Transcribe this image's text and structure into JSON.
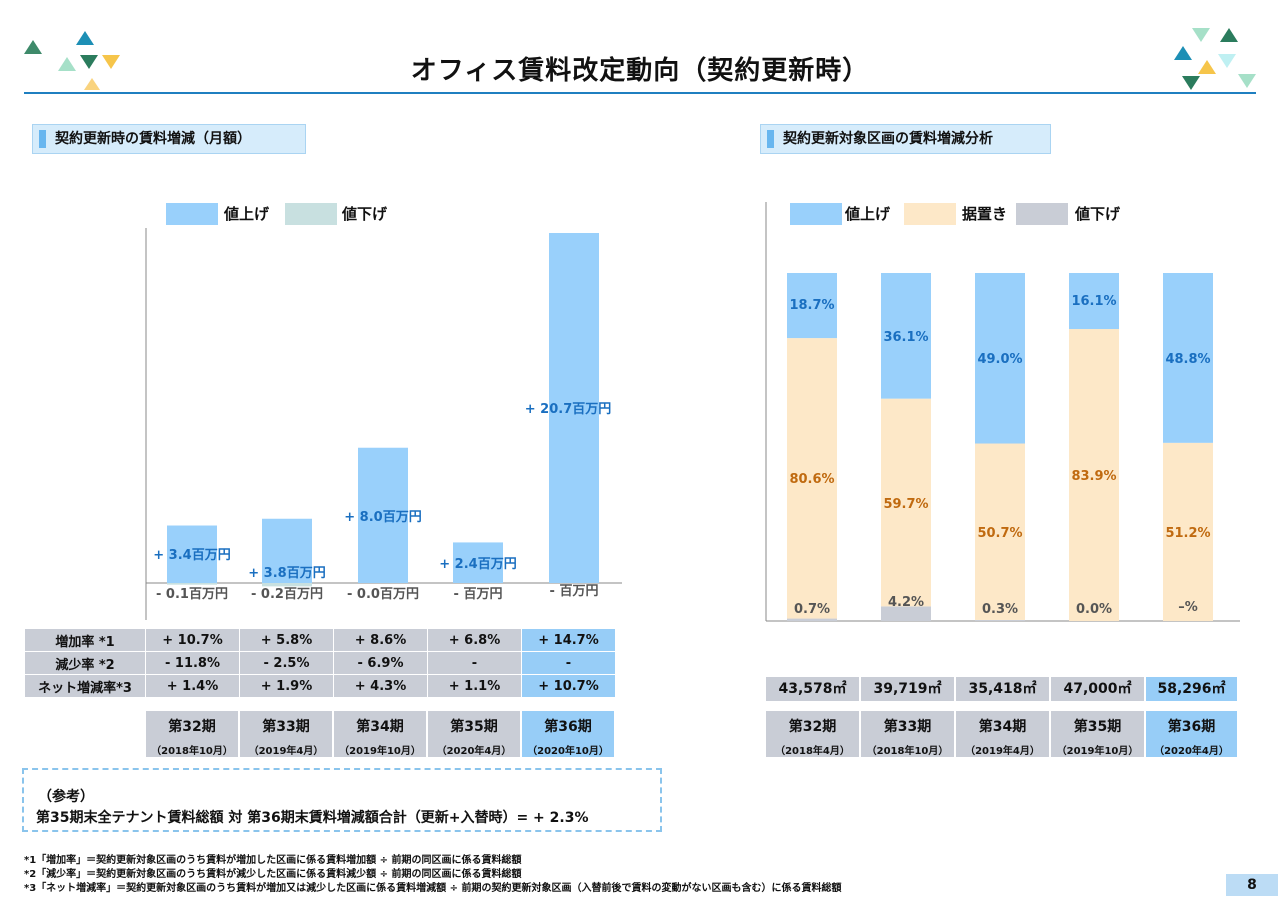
{
  "title": "オフィス賃料改定動向（契約更新時）",
  "left_section": {
    "heading": "契約更新時の賃料増減（月額）"
  },
  "right_section": {
    "heading": "契約更新対象区画の賃料増減分析"
  },
  "colors": {
    "increase": "#99d0fb",
    "decrease": "#c8e0e0",
    "flat": "#fde8c8",
    "down_gray": "#c9cdd6",
    "label_blue": "#1a6fc0",
    "label_orange": "#c06a10"
  },
  "chart_data": [
    {
      "type": "bar",
      "legend": [
        "値上げ",
        "値下げ"
      ],
      "categories": [
        "第32期",
        "第33期",
        "第34期",
        "第35期",
        "第36期"
      ],
      "series": [
        {
          "name": "値上げ",
          "values": [
            3.4,
            3.8,
            8.0,
            2.4,
            20.7
          ],
          "labels": [
            "+ 3.4百万円",
            "+ 3.8百万円",
            "+ 8.0百万円",
            "+ 2.4百万円",
            "+ 20.7百万円"
          ]
        },
        {
          "name": "値下げ",
          "values": [
            -0.1,
            -0.2,
            -0.0,
            0,
            0
          ],
          "labels": [
            "- 0.1百万円",
            "- 0.2百万円",
            "- 0.0百万円",
            "- 百万円",
            "- 百万円"
          ]
        }
      ],
      "ylim": [
        -1,
        20.7
      ]
    },
    {
      "type": "bar",
      "stacked": true,
      "legend": [
        "値上げ",
        "据置き",
        "値下げ"
      ],
      "categories": [
        "第32期",
        "第33期",
        "第34期",
        "第35期",
        "第36期"
      ],
      "series": [
        {
          "name": "値上げ",
          "values": [
            18.7,
            36.1,
            49.0,
            16.1,
            48.8
          ],
          "labels": [
            "18.7%",
            "36.1%",
            "49.0%",
            "16.1%",
            "48.8%"
          ]
        },
        {
          "name": "据置き",
          "values": [
            80.6,
            59.7,
            50.7,
            83.9,
            51.2
          ],
          "labels": [
            "80.6%",
            "59.7%",
            "50.7%",
            "83.9%",
            "51.2%"
          ]
        },
        {
          "name": "値下げ",
          "values": [
            0.7,
            4.2,
            0.3,
            0.0,
            0
          ],
          "labels": [
            "0.7%",
            "4.2%",
            "0.3%",
            "0.0%",
            "–%"
          ]
        }
      ],
      "ylim": [
        0,
        100
      ]
    }
  ],
  "metrics_table": {
    "rows": [
      {
        "label": "増加率 *1",
        "values": [
          "+ 10.7%",
          "+ 5.8%",
          "+ 8.6%",
          "+ 6.8%",
          "+ 14.7%"
        ]
      },
      {
        "label": "減少率 *2",
        "values": [
          "- 11.8%",
          "- 2.5%",
          "- 6.9%",
          "-",
          "-"
        ]
      },
      {
        "label": "ネット増減率*3",
        "values": [
          "+ 1.4%",
          "+ 1.9%",
          "+ 4.3%",
          "+ 1.1%",
          "+ 10.7%"
        ]
      }
    ]
  },
  "left_periods": [
    {
      "name": "第32期",
      "date": "（2018年10月）"
    },
    {
      "name": "第33期",
      "date": "（2019年4月）"
    },
    {
      "name": "第34期",
      "date": "（2019年10月）"
    },
    {
      "name": "第35期",
      "date": "（2020年4月）"
    },
    {
      "name": "第36期",
      "date": "（2020年10月）"
    }
  ],
  "areas": [
    "43,578㎡",
    "39,719㎡",
    "35,418㎡",
    "47,000㎡",
    "58,296㎡"
  ],
  "right_periods": [
    {
      "name": "第32期",
      "date": "（2018年4月）"
    },
    {
      "name": "第33期",
      "date": "（2018年10月）"
    },
    {
      "name": "第34期",
      "date": "（2019年4月）"
    },
    {
      "name": "第35期",
      "date": "（2019年10月）"
    },
    {
      "name": "第36期",
      "date": "（2020年4月）"
    }
  ],
  "reference": {
    "heading": "（参考）",
    "text": "第35期末全テナント賃料総額 対 第36期末賃料増減額合計（更新+入替時）= + 2.3%"
  },
  "footnotes": [
    "*1「増加率」＝契約更新対象区画のうち賃料が増加した区画に係る賃料増加額 ÷ 前期の同区画に係る賃料総額",
    "*2「減少率」＝契約更新対象区画のうち賃料が減少した区画に係る賃料減少額 ÷ 前期の同区画に係る賃料総額",
    "*3「ネット増減率」＝契約更新対象区画のうち賃料が増加又は減少した区画に係る賃料増減額 ÷ 前期の契約更新対象区画（入替前後で賃料の変動がない区画も含む）に係る賃料総額"
  ],
  "page_number": "8"
}
